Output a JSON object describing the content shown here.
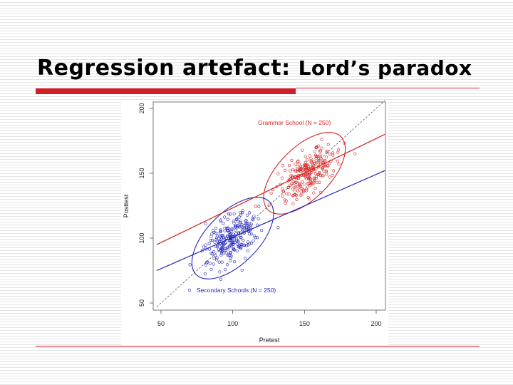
{
  "slide": {
    "title": "Regression artefact:",
    "subtitle": "Lord’s paradox",
    "accent_color": "#d21f27"
  },
  "chart_data": {
    "type": "scatter",
    "xlabel": "Pretest",
    "ylabel": "Posttest",
    "xlim": [
      50,
      200
    ],
    "ylim": [
      50,
      200
    ],
    "xticks": [
      50,
      100,
      150,
      200
    ],
    "yticks": [
      50,
      100,
      150,
      200
    ],
    "grid": false,
    "series": [
      {
        "name": "Grammar School (N = 250)",
        "color": "#d62020",
        "n": 250,
        "center": [
          152,
          150
        ],
        "regression_line": [
          [
            47,
            95
          ],
          [
            206,
            180
          ]
        ],
        "ellipse": {
          "center": [
            150,
            150
          ],
          "major_axis": 36,
          "minor_axis": 18,
          "angle_deg": 45
        }
      },
      {
        "name": "Secondary Schools (N = 250)",
        "color": "#1f24b8",
        "n": 250,
        "center": [
          100,
          100
        ],
        "regression_line": [
          [
            47,
            75
          ],
          [
            206,
            152
          ]
        ],
        "ellipse": {
          "center": [
            100,
            100
          ],
          "major_axis": 36,
          "minor_axis": 18,
          "angle_deg": 45
        }
      }
    ],
    "reference_line": {
      "style": "dashed",
      "color": "#444444",
      "points": [
        [
          47,
          47
        ],
        [
          206,
          206
        ]
      ]
    }
  }
}
